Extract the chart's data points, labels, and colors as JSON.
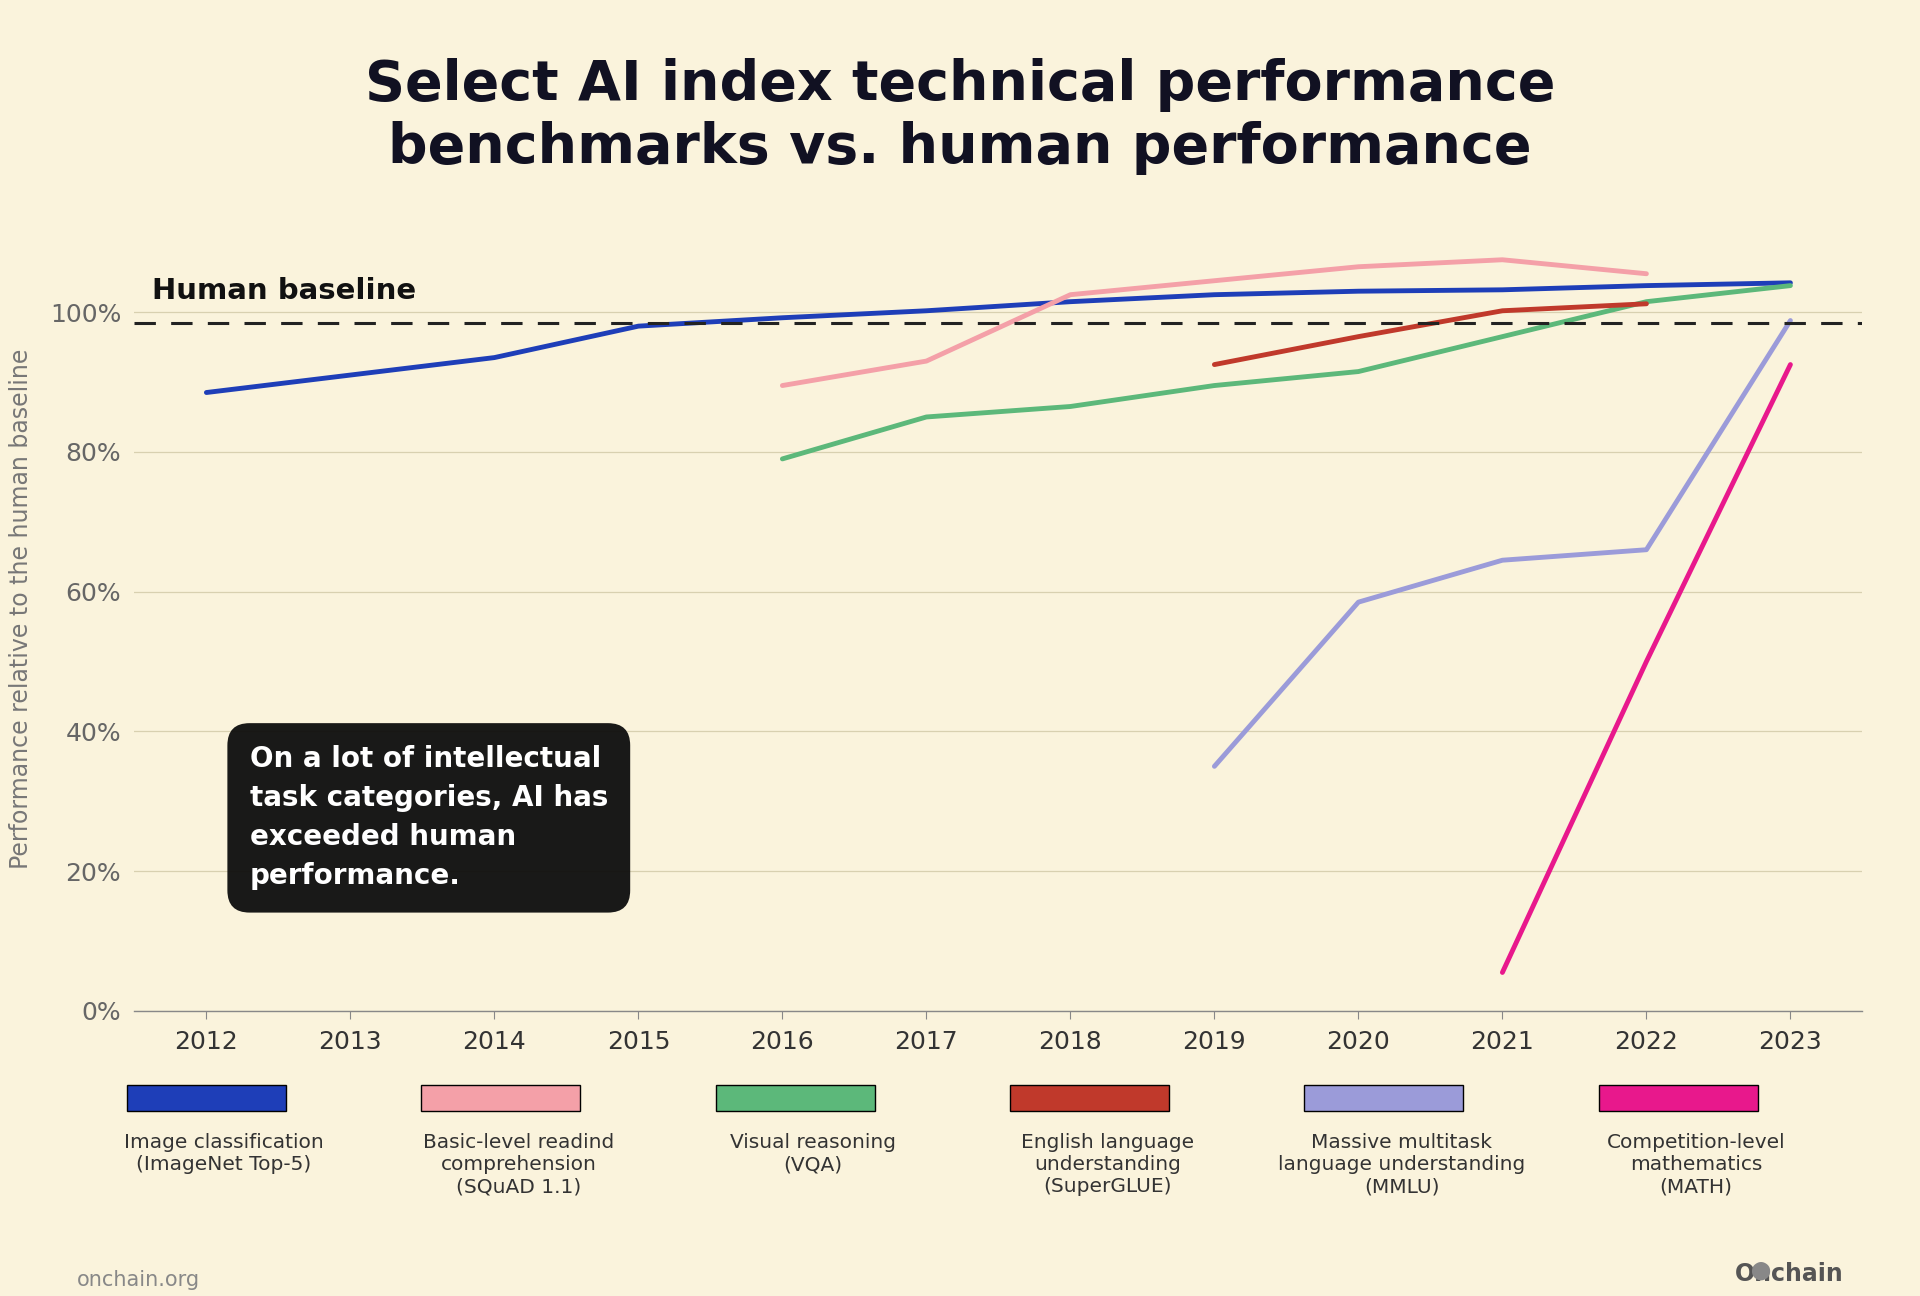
{
  "title": "Select AI index technical performance\nbenchmarks vs. human performance",
  "ylabel": "Performance relative to the human baseline",
  "background_color": "#FAF3DC",
  "human_baseline_y": 98.5,
  "series": [
    {
      "name": "Image classification\n(ImageNet Top-5)",
      "color": "#1e3eb8",
      "linewidth": 3.5,
      "data": [
        [
          2012,
          88.5
        ],
        [
          2013,
          91.0
        ],
        [
          2014,
          93.5
        ],
        [
          2015,
          98.0
        ],
        [
          2016,
          99.2
        ],
        [
          2017,
          100.2
        ],
        [
          2018,
          101.5
        ],
        [
          2019,
          102.5
        ],
        [
          2020,
          103.0
        ],
        [
          2021,
          103.2
        ],
        [
          2022,
          103.8
        ],
        [
          2023,
          104.2
        ]
      ]
    },
    {
      "name": "Basic-level readind\ncomprehension\n(SQuAD 1.1)",
      "color": "#f4a0a8",
      "linewidth": 3.5,
      "data": [
        [
          2016,
          89.5
        ],
        [
          2017,
          93.0
        ],
        [
          2018,
          102.5
        ],
        [
          2019,
          104.5
        ],
        [
          2020,
          106.5
        ],
        [
          2021,
          107.5
        ],
        [
          2022,
          105.5
        ]
      ]
    },
    {
      "name": "Visual reasoning\n(VQA)",
      "color": "#5cb87a",
      "linewidth": 3.5,
      "data": [
        [
          2016,
          79.0
        ],
        [
          2017,
          85.0
        ],
        [
          2018,
          86.5
        ],
        [
          2019,
          89.5
        ],
        [
          2020,
          91.5
        ],
        [
          2021,
          96.5
        ],
        [
          2022,
          101.5
        ],
        [
          2023,
          103.8
        ]
      ]
    },
    {
      "name": "English language\nunderstanding\n(SuperGLUE)",
      "color": "#c0392b",
      "linewidth": 3.5,
      "data": [
        [
          2019,
          92.5
        ],
        [
          2020,
          96.5
        ],
        [
          2021,
          100.2
        ],
        [
          2022,
          101.2
        ]
      ]
    },
    {
      "name": "Massive multitask\nlanguage understanding\n(MMLU)",
      "color": "#9b9bd9",
      "linewidth": 3.5,
      "data": [
        [
          2019,
          35.0
        ],
        [
          2020,
          58.5
        ],
        [
          2021,
          64.5
        ],
        [
          2022,
          66.0
        ],
        [
          2023,
          98.8
        ]
      ]
    },
    {
      "name": "Competition-level\nmathematics\n(MATH)",
      "color": "#e8188c",
      "linewidth": 3.5,
      "data": [
        [
          2021,
          5.5
        ],
        [
          2022,
          50.0
        ],
        [
          2023,
          92.5
        ]
      ]
    }
  ],
  "annotation_text": "On a lot of intellectual\ntask categories, AI has\nexceeded human\nperformance.",
  "xlim": [
    2011.5,
    2023.5
  ],
  "ylim": [
    0,
    115
  ],
  "yticks": [
    0,
    20,
    40,
    60,
    80,
    100
  ],
  "xticks": [
    2012,
    2013,
    2014,
    2015,
    2016,
    2017,
    2018,
    2019,
    2020,
    2021,
    2022,
    2023
  ],
  "footer_left": "onchain.org",
  "title_fontsize": 40,
  "label_fontsize": 17,
  "tick_fontsize": 18
}
